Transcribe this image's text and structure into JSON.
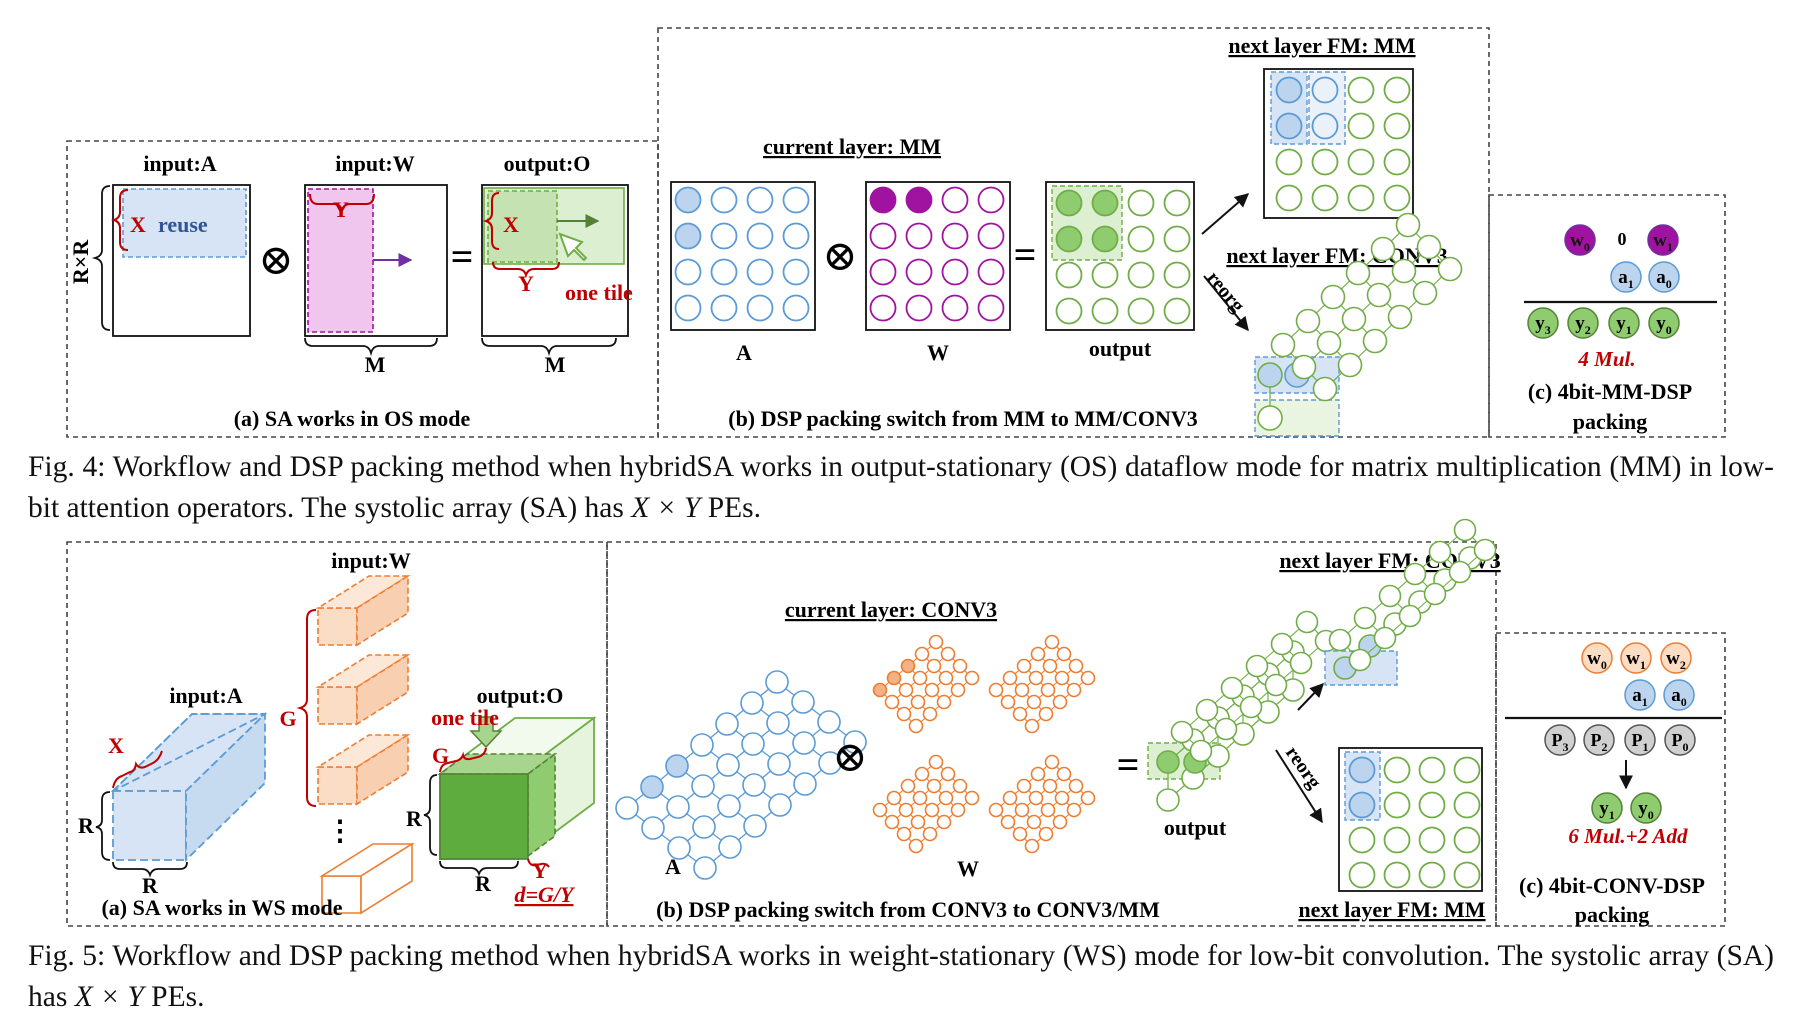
{
  "colors": {
    "blue_fill": "#bdd4ef",
    "blue_stroke": "#5b9bd5",
    "purple": "#a012a0",
    "pink": "#f1c6ee",
    "green_fill": "#8fcc70",
    "green_stroke": "#70ad47",
    "green_light": "#dcefd0",
    "orange": "#ed7d31",
    "orange_fill": "#fbdcc5",
    "red": "#c00000",
    "grey_fill": "#d0d0d0"
  },
  "fig4": {
    "a": {
      "input_a": "input:A",
      "input_w": "input:W",
      "output_o": "output:O",
      "rxr": "R×R",
      "x": "X",
      "reuse": "reuse",
      "y": "Y",
      "x2": "X",
      "y2": "Y",
      "one_tile": "one tile",
      "m1": "M",
      "m2": "M",
      "caption": "(a) SA works in OS mode"
    },
    "b": {
      "current_layer": "current layer: MM",
      "next_mm": "next layer FM: MM",
      "next_conv3": "next layer FM: CONV3",
      "reorg": "reorg",
      "a": "A",
      "w": "W",
      "output": "output",
      "caption": "(b) DSP packing switch from MM to MM/CONV3"
    },
    "c": {
      "w0": "w",
      "w0_sub": "0",
      "zero": "0",
      "w1": "w",
      "w1_sub": "1",
      "a1": "a",
      "a1_sub": "1",
      "a0": "a",
      "a0_sub": "0",
      "y3": "y",
      "y3_sub": "3",
      "y2": "y",
      "y2_sub": "2",
      "y1": "y",
      "y1_sub": "1",
      "y0": "y",
      "y0_sub": "0",
      "mul": "4 Mul.",
      "caption_1": "(c) 4bit-MM-DSP",
      "caption_2": "packing"
    },
    "caption_prefix": "Fig. 4: Workflow and DSP packing method when hybridSA works in output-stationary (OS) dataflow mode for matrix multiplication (MM) in low-bit attention operators. The systolic array (SA) has ",
    "caption_math": "X × Y",
    "caption_suffix": " PEs."
  },
  "fig5": {
    "a": {
      "input_w": "input:W",
      "input_a": "input:A",
      "output_o": "output:O",
      "one_tile": "one tile",
      "x": "X",
      "g": "G",
      "g2": "G",
      "r1": "R",
      "r2": "R",
      "r3": "R",
      "r4": "R",
      "y": "Y",
      "d": "d=G/Y",
      "dots": "⋮",
      "caption": "(a)  SA works in WS mode"
    },
    "b": {
      "current_layer": "current layer: CONV3",
      "next_conv3": "next layer FM: CONV3",
      "next_mm": "next layer FM: MM",
      "reorg": "reorg",
      "a": "A",
      "w": "W",
      "output": "output",
      "caption": "(b) DSP packing switch from CONV3 to CONV3/MM"
    },
    "c": {
      "w0": "w",
      "w0_sub": "0",
      "w1": "w",
      "w1_sub": "1",
      "w2": "w",
      "w2_sub": "2",
      "a1": "a",
      "a1_sub": "1",
      "a0": "a",
      "a0_sub": "0",
      "p3": "P",
      "p3_sub": "3",
      "p2": "P",
      "p2_sub": "2",
      "p1": "P",
      "p1_sub": "1",
      "p0": "P",
      "p0_sub": "0",
      "y1": "y",
      "y1_sub": "1",
      "y0": "y",
      "y0_sub": "0",
      "mul": "6 Mul.+2 Add",
      "caption_1": "(c) 4bit-CONV-DSP",
      "caption_2": "packing"
    },
    "caption_prefix": "Fig. 5: Workflow and DSP packing method when hybridSA works in weight-stationary (WS) mode for low-bit convolution. The systolic array (SA) has ",
    "caption_math": "X × Y",
    "caption_suffix": " PEs."
  }
}
